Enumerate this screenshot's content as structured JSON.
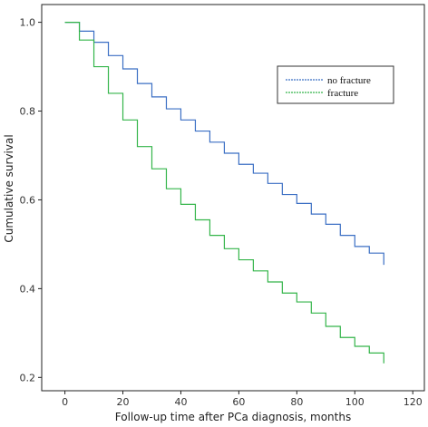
{
  "chart_data": {
    "type": "line",
    "title": "",
    "xlabel": "Follow-up time after PCa diagnosis, months",
    "ylabel": "Cumulative survival",
    "xlim": [
      -8,
      124
    ],
    "ylim": [
      0.17,
      1.04
    ],
    "xticks": [
      0,
      20,
      40,
      60,
      80,
      100,
      120
    ],
    "yticks": [
      0.2,
      0.4,
      0.6,
      0.8,
      1.0
    ],
    "xtick_labels": [
      "0",
      "20",
      "40",
      "60",
      "80",
      "100",
      "120"
    ],
    "ytick_labels": [
      "0.2",
      "0.4",
      "0.6",
      "0.8",
      "1.0"
    ],
    "grid": false,
    "legend_position": "top-right",
    "series": [
      {
        "name": "no fracture",
        "color": "#3b6fc4",
        "step": true,
        "x": [
          0,
          5,
          10,
          15,
          20,
          25,
          30,
          35,
          40,
          45,
          50,
          55,
          60,
          65,
          70,
          75,
          80,
          85,
          90,
          95,
          100,
          105,
          110
        ],
        "y": [
          1.0,
          0.98,
          0.955,
          0.925,
          0.895,
          0.862,
          0.832,
          0.805,
          0.78,
          0.755,
          0.73,
          0.705,
          0.68,
          0.66,
          0.637,
          0.612,
          0.592,
          0.568,
          0.545,
          0.52,
          0.495,
          0.48,
          0.47
        ]
      },
      {
        "name": "fracture",
        "color": "#34b54a",
        "step": true,
        "x": [
          0,
          5,
          10,
          15,
          20,
          25,
          30,
          35,
          40,
          45,
          50,
          55,
          60,
          65,
          70,
          75,
          80,
          85,
          90,
          95,
          100,
          105,
          110
        ],
        "y": [
          1.0,
          0.96,
          0.9,
          0.84,
          0.78,
          0.72,
          0.67,
          0.625,
          0.59,
          0.555,
          0.52,
          0.49,
          0.465,
          0.44,
          0.415,
          0.39,
          0.37,
          0.345,
          0.315,
          0.29,
          0.27,
          0.255,
          0.248
        ]
      }
    ]
  }
}
